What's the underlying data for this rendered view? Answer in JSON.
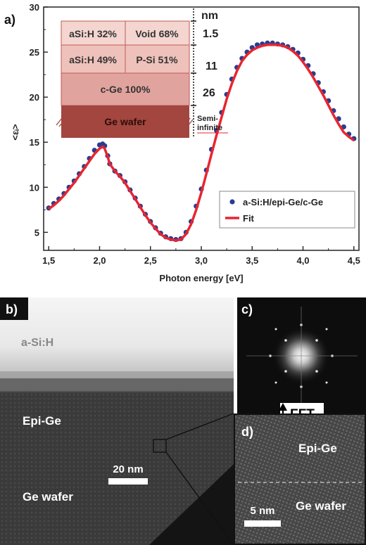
{
  "panel_a": {
    "label": "a)",
    "layer_stack": {
      "thickness_unit": "nm",
      "layers": [
        {
          "left": "aSi:H 32%",
          "right": "Void 68%",
          "thickness": "1.5",
          "color": "#f4d5d0"
        },
        {
          "left": "aSi:H 49%",
          "right": "P-Si 51%",
          "thickness": "11",
          "color": "#efc1bb"
        },
        {
          "name": "c-Ge 100%",
          "thickness": "26",
          "color": "#e1a39e"
        },
        {
          "name": "Ge wafer",
          "thickness": "Semi-\ninfinite",
          "color": "#a2463f"
        }
      ]
    }
  },
  "panel_b": {
    "label": "b)",
    "layer_top": "a-Si:H",
    "layer_mid": "Epi-Ge",
    "layer_bottom": "Ge wafer",
    "scale_bar": "20  nm"
  },
  "panel_c": {
    "label": "c)",
    "caption": "FFT"
  },
  "panel_d": {
    "label": "d)",
    "layer_top": "Epi-Ge",
    "layer_bottom": "Ge wafer",
    "scale_bar": "5  nm"
  },
  "colors": {
    "data": "#2b3c8f",
    "fit": "#e8252f",
    "stack_border": "#c05a55"
  },
  "chart_data": {
    "type": "scatter",
    "xlabel": "Photon energy [eV]",
    "ylabel": "<εᵢ>",
    "xlim": [
      1.45,
      4.55
    ],
    "ylim": [
      3,
      30
    ],
    "xticks": [
      "1,5",
      "2,0",
      "2,5",
      "3,0",
      "3,5",
      "4,0",
      "4,5"
    ],
    "yticks": [
      "5",
      "10",
      "15",
      "20",
      "25",
      "30"
    ],
    "legend_position": "bottom-right",
    "series": [
      {
        "name": "a-Si:H/epi-Ge/c-Ge",
        "style": "markers",
        "x": [
          1.5,
          1.55,
          1.6,
          1.65,
          1.7,
          1.75,
          1.8,
          1.85,
          1.9,
          1.95,
          2.0,
          2.03,
          2.05,
          2.08,
          2.1,
          2.15,
          2.2,
          2.25,
          2.3,
          2.35,
          2.4,
          2.45,
          2.5,
          2.55,
          2.6,
          2.65,
          2.7,
          2.75,
          2.8,
          2.85,
          2.9,
          2.95,
          3.0,
          3.05,
          3.1,
          3.15,
          3.2,
          3.25,
          3.3,
          3.35,
          3.4,
          3.45,
          3.5,
          3.55,
          3.6,
          3.65,
          3.7,
          3.75,
          3.8,
          3.85,
          3.9,
          3.95,
          4.0,
          4.05,
          4.1,
          4.15,
          4.2,
          4.25,
          4.3,
          4.35,
          4.4,
          4.45,
          4.5
        ],
        "y": [
          7.7,
          8.2,
          8.7,
          9.3,
          10.0,
          10.7,
          11.5,
          12.3,
          13.2,
          14.1,
          14.7,
          14.8,
          14.6,
          13.5,
          12.6,
          11.8,
          11.3,
          10.6,
          9.7,
          8.8,
          7.9,
          7.0,
          6.2,
          5.5,
          4.9,
          4.5,
          4.3,
          4.2,
          4.3,
          5.0,
          6.2,
          7.9,
          9.8,
          11.9,
          14.2,
          16.3,
          18.3,
          20.3,
          22.0,
          23.3,
          24.3,
          25.0,
          25.5,
          25.8,
          25.9,
          26.0,
          26.0,
          25.9,
          25.8,
          25.6,
          25.3,
          24.9,
          24.2,
          23.5,
          22.6,
          21.6,
          20.6,
          19.6,
          18.5,
          17.6,
          16.7,
          15.9,
          15.4
        ]
      },
      {
        "name": "Fit",
        "style": "line",
        "x": [
          1.5,
          1.55,
          1.6,
          1.65,
          1.7,
          1.75,
          1.8,
          1.85,
          1.9,
          1.95,
          2.0,
          2.03,
          2.05,
          2.08,
          2.1,
          2.15,
          2.2,
          2.25,
          2.3,
          2.35,
          2.4,
          2.45,
          2.5,
          2.55,
          2.6,
          2.65,
          2.7,
          2.75,
          2.8,
          2.85,
          2.9,
          2.95,
          3.0,
          3.05,
          3.1,
          3.15,
          3.2,
          3.25,
          3.3,
          3.35,
          3.4,
          3.45,
          3.5,
          3.55,
          3.6,
          3.65,
          3.7,
          3.75,
          3.8,
          3.85,
          3.9,
          3.95,
          4.0,
          4.05,
          4.1,
          4.15,
          4.2,
          4.25,
          4.3,
          4.35,
          4.4,
          4.45,
          4.5
        ],
        "y": [
          7.6,
          8.0,
          8.5,
          9.1,
          9.8,
          10.5,
          11.3,
          12.1,
          12.9,
          13.7,
          14.3,
          14.5,
          14.3,
          13.4,
          12.6,
          11.8,
          11.2,
          10.5,
          9.6,
          8.7,
          7.8,
          6.9,
          6.1,
          5.4,
          4.8,
          4.4,
          4.2,
          4.1,
          4.2,
          4.8,
          5.9,
          7.5,
          9.4,
          11.5,
          13.7,
          15.8,
          17.8,
          19.8,
          21.5,
          22.9,
          24.0,
          24.7,
          25.2,
          25.5,
          25.7,
          25.8,
          25.8,
          25.8,
          25.7,
          25.5,
          25.1,
          24.6,
          23.9,
          23.1,
          22.2,
          21.2,
          20.2,
          19.1,
          18.0,
          17.0,
          16.1,
          15.6,
          15.2
        ]
      }
    ]
  }
}
